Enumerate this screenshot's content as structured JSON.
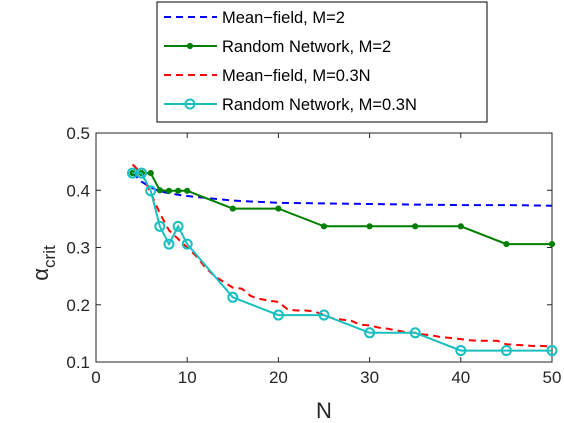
{
  "chart_data": {
    "type": "line",
    "title": "",
    "xlabel": "N",
    "ylabel": "α",
    "ylabel_sub": "crit",
    "xlim": [
      0,
      50
    ],
    "ylim": [
      0.1,
      0.5
    ],
    "xticks": [
      0,
      10,
      20,
      30,
      40,
      50
    ],
    "xtick_labels": [
      "0",
      "10",
      "20",
      "30",
      "40",
      "50"
    ],
    "yticks": [
      0.1,
      0.2,
      0.3,
      0.4,
      0.5
    ],
    "ytick_labels": [
      "0.1",
      "0.2",
      "0.3",
      "0.4",
      "0.5"
    ],
    "grid": false,
    "legend_position": "top-center",
    "series": [
      {
        "name": "Mean−field, M=2",
        "color": "#0000ff",
        "style": "dashed",
        "marker": "none",
        "x": [
          4,
          5,
          6,
          7,
          8,
          9,
          10,
          15,
          20,
          25,
          30,
          35,
          40,
          45,
          50
        ],
        "y": [
          0.43,
          0.415,
          0.405,
          0.398,
          0.395,
          0.392,
          0.39,
          0.382,
          0.378,
          0.377,
          0.376,
          0.375,
          0.374,
          0.374,
          0.373
        ]
      },
      {
        "name": "Random Network, M=2",
        "color": "#007f00",
        "style": "solid",
        "marker": "dot",
        "x": [
          4,
          5,
          6,
          7,
          8,
          9,
          10,
          15,
          20,
          25,
          30,
          35,
          40,
          45,
          50
        ],
        "y": [
          0.43,
          0.43,
          0.43,
          0.4,
          0.399,
          0.399,
          0.399,
          0.368,
          0.368,
          0.337,
          0.337,
          0.337,
          0.337,
          0.306,
          0.306
        ]
      },
      {
        "name": "Mean−field, M=0.3N",
        "color": "#ff0000",
        "style": "dashed",
        "marker": "none",
        "x": [
          4,
          5,
          6,
          7,
          8,
          9,
          10,
          11,
          12,
          13,
          14,
          15,
          16,
          17,
          18,
          19,
          20,
          21,
          22,
          23,
          24,
          25,
          26,
          27,
          28,
          29,
          30,
          31,
          32,
          33,
          34,
          35,
          36,
          37,
          38,
          39,
          40,
          41,
          42,
          43,
          44,
          45,
          46,
          47,
          48,
          49,
          50
        ],
        "y": [
          0.445,
          0.43,
          0.395,
          0.36,
          0.33,
          0.315,
          0.3,
          0.285,
          0.265,
          0.25,
          0.24,
          0.23,
          0.228,
          0.215,
          0.21,
          0.207,
          0.205,
          0.192,
          0.19,
          0.19,
          0.188,
          0.182,
          0.176,
          0.174,
          0.172,
          0.165,
          0.164,
          0.16,
          0.158,
          0.155,
          0.152,
          0.151,
          0.148,
          0.146,
          0.143,
          0.142,
          0.14,
          0.138,
          0.137,
          0.137,
          0.137,
          0.131,
          0.13,
          0.129,
          0.128,
          0.128,
          0.127
        ]
      },
      {
        "name": "Random Network, M=0.3N",
        "color": "#19bfbf",
        "style": "solid",
        "marker": "circle",
        "x": [
          4,
          5,
          6,
          7,
          8,
          9,
          10,
          15,
          20,
          25,
          30,
          35,
          40,
          45,
          50
        ],
        "y": [
          0.43,
          0.43,
          0.399,
          0.337,
          0.306,
          0.337,
          0.306,
          0.213,
          0.182,
          0.182,
          0.151,
          0.151,
          0.12,
          0.12,
          0.12
        ]
      }
    ]
  }
}
